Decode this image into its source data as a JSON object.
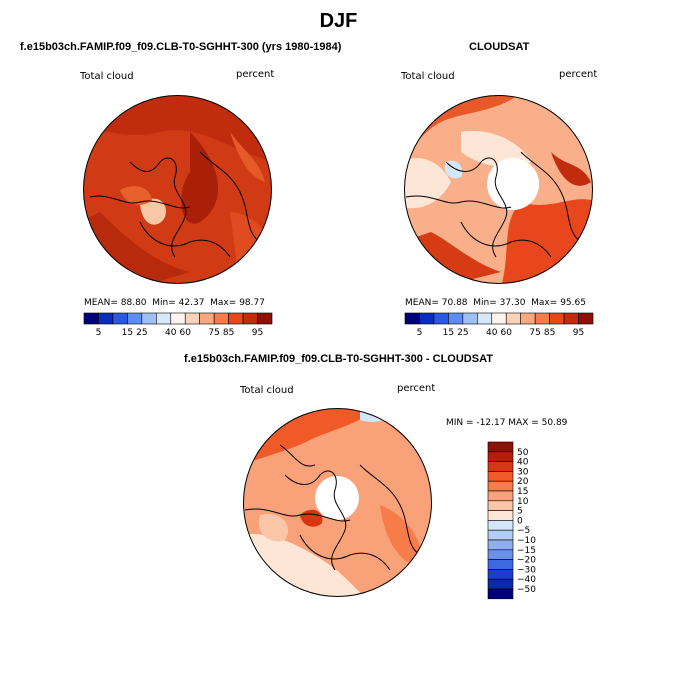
{
  "figure": {
    "title": "DJF"
  },
  "chart_data": [
    {
      "type": "heatmap",
      "projection": "north-polar-stereographic",
      "title": "f.e15b03ch.FAMIP.f09_f09.CLB-T0-SGHHT-300 (yrs 1980-1984)",
      "variable_label": "Total cloud",
      "units_label": "percent",
      "stats": {
        "mean_label": "MEAN=",
        "mean": "88.80",
        "min_label": "Min=",
        "min": "42.37",
        "max_label": "Max=",
        "max": "98.77"
      },
      "colorbar": {
        "orientation": "horizontal",
        "tick_labels": [
          "5",
          "15",
          "25",
          "40",
          "60",
          "75",
          "85",
          "95"
        ],
        "colors": [
          "#00007a",
          "#0a2dbd",
          "#2a59e0",
          "#5b8ef0",
          "#9ec0f5",
          "#d6e8fa",
          "#fff4ec",
          "#fcd2b8",
          "#f9a880",
          "#f57b4d",
          "#e8471d",
          "#c02c0d",
          "#8c1206"
        ]
      },
      "dominant_colors": [
        "#c8320e",
        "#d9401a",
        "#e8602e",
        "#f8c7a8"
      ]
    },
    {
      "type": "heatmap",
      "projection": "north-polar-stereographic",
      "title": "CLOUDSAT",
      "variable_label": "Total cloud",
      "units_label": "percent",
      "stats": {
        "mean_label": "MEAN=",
        "mean": "70.88",
        "min_label": "Min=",
        "min": "37.30",
        "max_label": "Max=",
        "max": "95.65"
      },
      "colorbar": {
        "orientation": "horizontal",
        "tick_labels": [
          "5",
          "15",
          "25",
          "40",
          "60",
          "75",
          "85",
          "95"
        ],
        "colors": [
          "#00007a",
          "#0a2dbd",
          "#2a59e0",
          "#5b8ef0",
          "#9ec0f5",
          "#d6e8fa",
          "#fff4ec",
          "#fcd2b8",
          "#f9a880",
          "#f57b4d",
          "#e8471d",
          "#c02c0d",
          "#8c1206"
        ]
      },
      "missing_region": "north-pole-hole"
    },
    {
      "type": "heatmap",
      "projection": "north-polar-stereographic",
      "title": "f.e15b03ch.FAMIP.f09_f09.CLB-T0-SGHHT-300 - CLOUDSAT",
      "variable_label": "Total cloud",
      "units_label": "percent",
      "stats_line": "MIN = -12.17 MAX =  50.89",
      "stats": {
        "min": -12.17,
        "max": 50.89
      },
      "colorbar": {
        "orientation": "vertical",
        "tick_labels": [
          "50",
          "40",
          "30",
          "20",
          "15",
          "10",
          "5",
          "0",
          "−5",
          "−10",
          "−15",
          "−20",
          "−30",
          "−40",
          "−50"
        ],
        "colors": [
          "#8c1206",
          "#b3200a",
          "#d93512",
          "#ef5a28",
          "#f67c4a",
          "#f9a27a",
          "#fbc6a7",
          "#fde6d6",
          "#d4e7f8",
          "#b3cdf3",
          "#8fb0ee",
          "#6a90e8",
          "#3d68df",
          "#1a3fcf",
          "#0a2aa6",
          "#00007a"
        ]
      },
      "missing_region": "north-pole-hole"
    }
  ]
}
